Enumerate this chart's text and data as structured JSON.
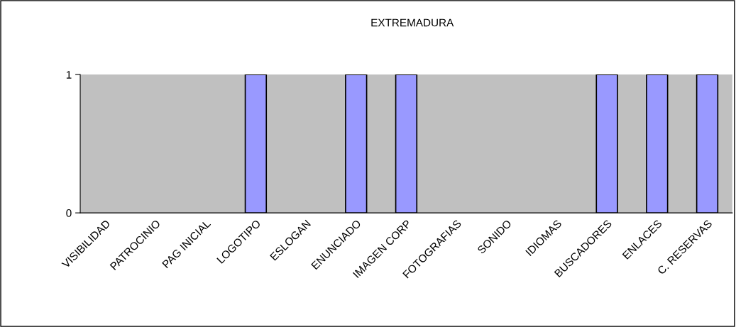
{
  "chart_data": {
    "type": "bar",
    "title": "EXTREMADURA",
    "categories": [
      "VISIBILIDAD",
      "PATROCINIO",
      "PAG INICIAL",
      "LOGOTIPO",
      "ESLOGAN",
      "ENUNCIADO",
      "IMAGEN CORP",
      "FOTOGRAFIAS",
      "SONIDO",
      "IDIOMAS",
      "BUSCADORES",
      "ENLACES",
      "C. RESERVAS"
    ],
    "values": [
      0,
      0,
      0,
      1,
      0,
      1,
      1,
      0,
      0,
      0,
      1,
      1,
      1
    ],
    "color": "#9999ff",
    "ylim": [
      0,
      1
    ],
    "yticks": [
      0,
      1
    ],
    "grid": false,
    "legend": false
  }
}
